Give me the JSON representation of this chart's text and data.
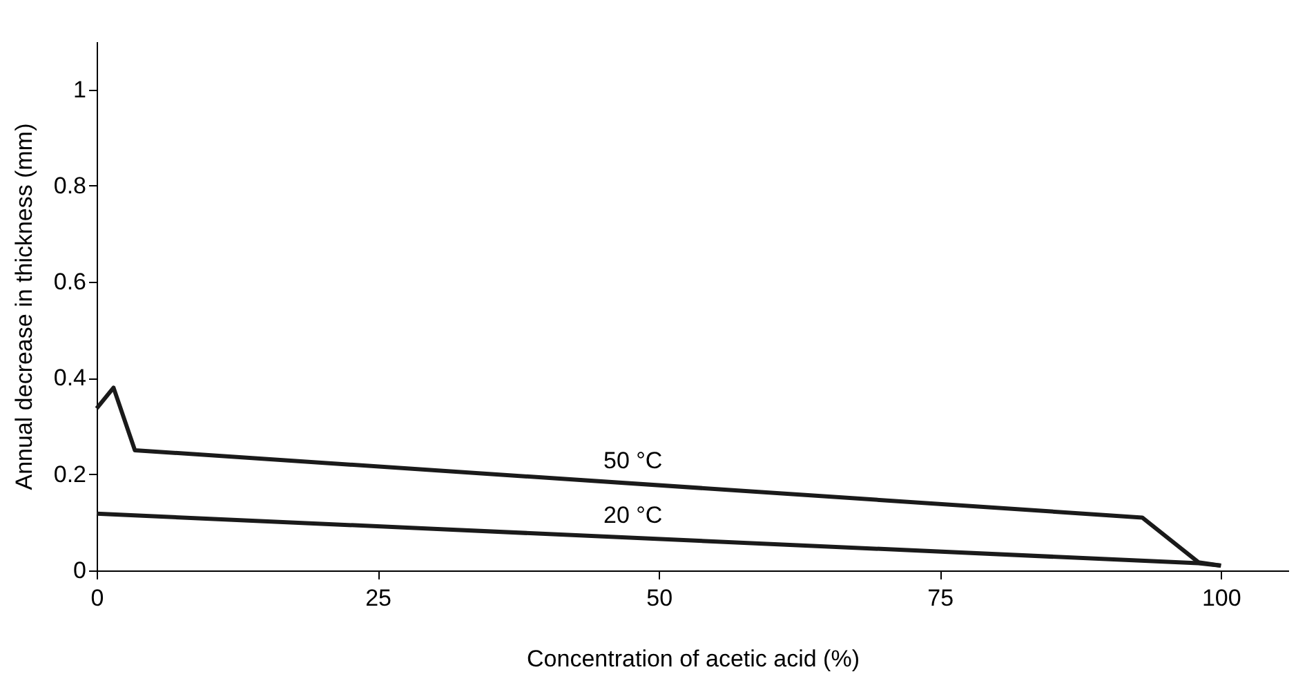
{
  "chart_data": {
    "type": "line",
    "xlabel": "Concentration of acetic acid (%)",
    "ylabel": "Annual decrease in thickness (mm)",
    "series": [
      {
        "name": "50 °C",
        "color": "#1a1a1a",
        "x": [
          0,
          1.5,
          3.4,
          93,
          98,
          100
        ],
        "values": [
          0.337,
          0.38,
          0.25,
          0.11,
          0.017,
          0.01
        ]
      },
      {
        "name": "20 °C",
        "color": "#1a1a1a",
        "x": [
          0,
          98,
          100
        ],
        "values": [
          0.118,
          0.015,
          0.01
        ]
      }
    ],
    "xlim": [
      0,
      106
    ],
    "ylim": [
      0,
      1.1
    ],
    "xticks": [
      0,
      25,
      50,
      75,
      100
    ],
    "yticks": [
      0,
      0.2,
      0.4,
      0.6,
      0.8,
      1
    ],
    "grid": false,
    "marker": "none",
    "line_style": "solid"
  }
}
